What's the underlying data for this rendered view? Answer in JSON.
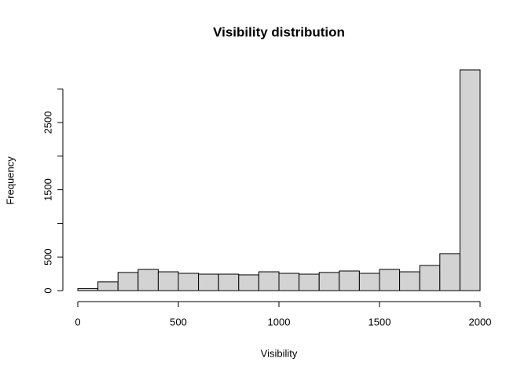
{
  "chart_data": {
    "type": "histogram",
    "title": "Visibility distribution",
    "xlabel": "Visibility",
    "ylabel": "Frequency",
    "bins": [
      0,
      100,
      200,
      300,
      400,
      500,
      600,
      700,
      800,
      900,
      1000,
      1100,
      1200,
      1300,
      1400,
      1500,
      1600,
      1700,
      1800,
      1900,
      2000
    ],
    "values": [
      30,
      130,
      270,
      315,
      280,
      257,
      245,
      245,
      234,
      280,
      257,
      245,
      270,
      292,
      257,
      315,
      280,
      374,
      550,
      3283
    ],
    "color": "#d3d3d3",
    "xlim": [
      0,
      2000
    ],
    "xticks": [
      0,
      500,
      1000,
      1500,
      2000
    ],
    "ylim": [
      0,
      3300
    ],
    "yticks": [
      0,
      500,
      1500,
      2500
    ],
    "yticks_minor": [
      1000,
      2000,
      3000
    ]
  }
}
